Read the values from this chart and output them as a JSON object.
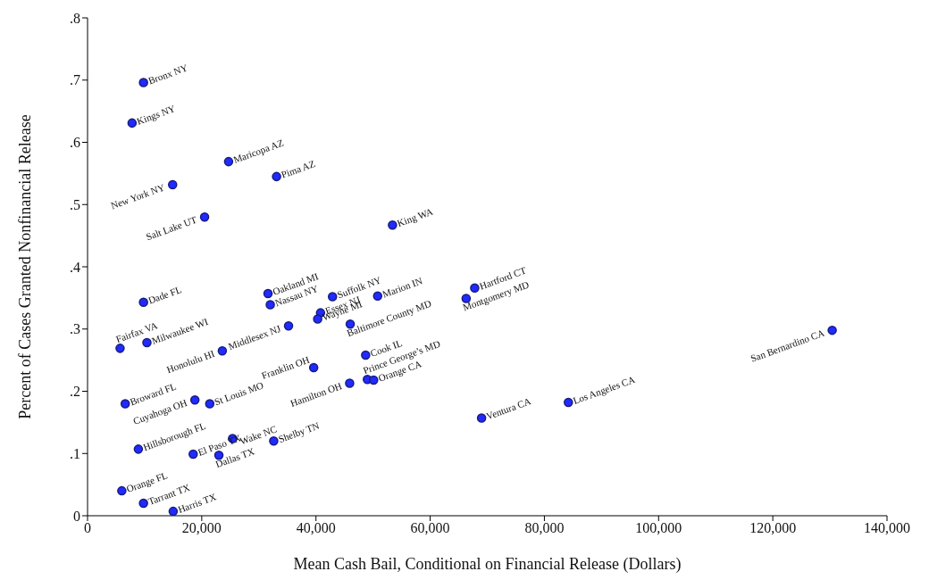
{
  "chart_data": {
    "type": "scatter",
    "xlabel": "Mean Cash Bail, Conditional on Financial Release (Dollars)",
    "ylabel": "Percent of Cases Granted Nonfinancial Release",
    "xlim": [
      0,
      140000
    ],
    "ylim": [
      0,
      0.8
    ],
    "xticks": [
      0,
      {
        "value": 20000,
        "label": "20,000"
      },
      {
        "value": 40000,
        "label": "40,000"
      },
      {
        "value": 60000,
        "label": "60,000"
      },
      {
        "value": 80000,
        "label": "80,000"
      },
      {
        "value": 100000,
        "label": "100,000"
      },
      {
        "value": 120000,
        "label": "120,000"
      },
      {
        "value": 140000,
        "label": "140,000"
      }
    ],
    "yticks": [
      0,
      {
        "value": 0.1,
        "label": ".1"
      },
      {
        "value": 0.2,
        "label": ".2"
      },
      {
        "value": 0.3,
        "label": ".3"
      },
      {
        "value": 0.4,
        "label": ".4"
      },
      {
        "value": 0.5,
        "label": ".5"
      },
      {
        "value": 0.6,
        "label": ".6"
      },
      {
        "value": 0.7,
        "label": ".7"
      },
      {
        "value": 0.8,
        "label": ".8"
      }
    ],
    "grid": false,
    "legend": false,
    "marker": "circle",
    "series": [
      {
        "color": "#1f2bff",
        "x": [
          9800,
          7800,
          24700,
          33100,
          14900,
          20500,
          53400,
          31600,
          42900,
          50800,
          67800,
          66300,
          32000,
          9800,
          40800,
          40300,
          46000,
          35200,
          130400,
          10400,
          5700,
          23600,
          48700,
          39600,
          49000,
          50100,
          45900,
          18800,
          21400,
          6600,
          84200,
          69000,
          25400,
          32600,
          8900,
          18500,
          23000,
          6000,
          9800,
          15000
        ],
        "values": [
          0.696,
          0.631,
          0.569,
          0.545,
          0.532,
          0.48,
          0.467,
          0.357,
          0.352,
          0.353,
          0.366,
          0.349,
          0.339,
          0.343,
          0.326,
          0.316,
          0.308,
          0.305,
          0.298,
          0.278,
          0.269,
          0.265,
          0.258,
          0.238,
          0.219,
          0.218,
          0.213,
          0.186,
          0.18,
          0.18,
          0.182,
          0.157,
          0.124,
          0.12,
          0.107,
          0.099,
          0.097,
          0.04,
          0.02,
          0.007
        ],
        "value_labels": [
          "Bronx NY",
          "Kings NY",
          "Maricopa AZ",
          "Pima AZ",
          "New York NY",
          "Salt Lake UT",
          "King WA",
          "Oakland MI",
          "Suffolk NY",
          "Marion IN",
          "Hartford CT",
          "Montgomery MD",
          "Nassau NY",
          "Dade FL",
          "Essex NJ",
          "Wayne MI",
          "Baltimore County MD",
          "Middlesex NJ",
          "San Bernardino CA",
          "Milwaukee WI",
          "Fairfax VA",
          "Honolulu HI",
          "Cook IL",
          "Franklin OH",
          "Prince George’s MD",
          "Orange CA",
          "Hamilton OH",
          "Cuyahoga OH",
          "St Louis MO",
          "Broward FL",
          "Los Angeles CA",
          "Ventura CA",
          "Wake NC",
          "Shelby TN",
          "Hillsborough FL",
          "El Paso TX",
          "Dallas TX",
          "Orange FL",
          "Tarrant TX",
          "Harris TX"
        ]
      }
    ]
  }
}
